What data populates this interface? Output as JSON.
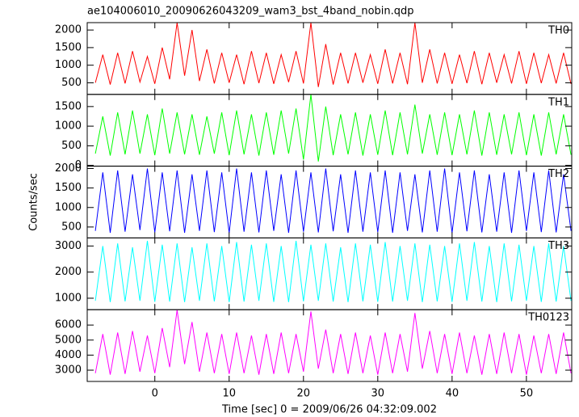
{
  "chart_data": [
    {
      "type": "line",
      "title": "ae104006010_20090626043209_wam3_bst_4band_nobin.qdp",
      "x": [
        -8,
        -7,
        -6,
        -5,
        -4,
        -3,
        -2,
        -1,
        0,
        1,
        2,
        3,
        4,
        5,
        6,
        7,
        8,
        9,
        10,
        11,
        12,
        13,
        14,
        15,
        16,
        17,
        18,
        19,
        20,
        21,
        22,
        23,
        24,
        25,
        26,
        27,
        28,
        29,
        30,
        31,
        32,
        33,
        34,
        35,
        36,
        37,
        38,
        39,
        40,
        41,
        42,
        43,
        44,
        45,
        46,
        47,
        48,
        49,
        50,
        51,
        52,
        53,
        54,
        55,
        56
      ],
      "series": [
        {
          "name": "TH0",
          "color": "#ff0000",
          "values": [
            500,
            1300,
            450,
            1350,
            480,
            1400,
            520,
            1250,
            470,
            1500,
            600,
            2210,
            700,
            2000,
            550,
            1450,
            480,
            1350,
            500,
            1300,
            460,
            1400,
            490,
            1350,
            470,
            1300,
            520,
            1400,
            480,
            2210,
            380,
            1600,
            450,
            1350,
            480,
            1350,
            500,
            1300,
            470,
            1450,
            480,
            1350,
            460,
            2210,
            500,
            1450,
            480,
            1350,
            470,
            1300,
            490,
            1400,
            460,
            1350,
            500,
            1300,
            480,
            1400,
            470,
            1350,
            490,
            1300,
            480,
            1350,
            470
          ]
        }
      ],
      "xlim": [
        -9.1,
        56.1
      ],
      "xticks": [
        0,
        10,
        20,
        30,
        40,
        50
      ],
      "ylim": [
        170,
        2210
      ],
      "yticks": [
        500,
        1000,
        1500,
        2000
      ]
    },
    {
      "type": "line",
      "x": [
        -8,
        -7,
        -6,
        -5,
        -4,
        -3,
        -2,
        -1,
        0,
        1,
        2,
        3,
        4,
        5,
        6,
        7,
        8,
        9,
        10,
        11,
        12,
        13,
        14,
        15,
        16,
        17,
        18,
        19,
        20,
        21,
        22,
        23,
        24,
        25,
        26,
        27,
        28,
        29,
        30,
        31,
        32,
        33,
        34,
        35,
        36,
        37,
        38,
        39,
        40,
        41,
        42,
        43,
        44,
        45,
        46,
        47,
        48,
        49,
        50,
        51,
        52,
        53,
        54,
        55,
        56
      ],
      "series": [
        {
          "name": "TH1",
          "color": "#00ff00",
          "values": [
            300,
            1250,
            250,
            1350,
            280,
            1400,
            300,
            1300,
            260,
            1450,
            300,
            1350,
            280,
            1300,
            270,
            1250,
            300,
            1350,
            260,
            1400,
            280,
            1300,
            250,
            1350,
            270,
            1400,
            300,
            1450,
            150,
            1810,
            100,
            1500,
            260,
            1300,
            280,
            1350,
            250,
            1300,
            270,
            1400,
            260,
            1350,
            280,
            1550,
            300,
            1300,
            270,
            1350,
            260,
            1300,
            280,
            1400,
            250,
            1350,
            270,
            1300,
            280,
            1350,
            260,
            1300,
            250,
            1350,
            280,
            1300,
            270
          ]
        }
      ],
      "xlim": [
        -9.1,
        56.1
      ],
      "xticks": [
        0,
        10,
        20,
        30,
        40,
        50
      ],
      "ylim": [
        -20,
        1810
      ],
      "yticks": [
        0,
        500,
        1000,
        1500
      ]
    },
    {
      "type": "line",
      "ylabel": "Counts/sec",
      "x": [
        -8,
        -7,
        -6,
        -5,
        -4,
        -3,
        -2,
        -1,
        0,
        1,
        2,
        3,
        4,
        5,
        6,
        7,
        8,
        9,
        10,
        11,
        12,
        13,
        14,
        15,
        16,
        17,
        18,
        19,
        20,
        21,
        22,
        23,
        24,
        25,
        26,
        27,
        28,
        29,
        30,
        31,
        32,
        33,
        34,
        35,
        36,
        37,
        38,
        39,
        40,
        41,
        42,
        43,
        44,
        45,
        46,
        47,
        48,
        49,
        50,
        51,
        52,
        53,
        54,
        55,
        56
      ],
      "series": [
        {
          "name": "TH2",
          "color": "#0000ff",
          "values": [
            400,
            1900,
            350,
            1950,
            380,
            1850,
            420,
            2000,
            360,
            1900,
            390,
            1950,
            350,
            1850,
            400,
            1950,
            370,
            1900,
            350,
            2000,
            380,
            1900,
            360,
            1950,
            400,
            1850,
            350,
            1950,
            380,
            1900,
            360,
            2000,
            390,
            1850,
            350,
            1950,
            380,
            1900,
            370,
            1950,
            350,
            1900,
            400,
            1850,
            360,
            1950,
            380,
            2000,
            350,
            1900,
            390,
            1950,
            360,
            1850,
            380,
            1900,
            350,
            1950,
            400,
            1900,
            370,
            1950,
            360,
            1850,
            400
          ]
        }
      ],
      "xlim": [
        -9.1,
        56.1
      ],
      "xticks": [
        0,
        10,
        20,
        30,
        40,
        50
      ],
      "ylim": [
        220,
        2060
      ],
      "yticks": [
        500,
        1000,
        1500,
        2000
      ]
    },
    {
      "type": "line",
      "x": [
        -8,
        -7,
        -6,
        -5,
        -4,
        -3,
        -2,
        -1,
        0,
        1,
        2,
        3,
        4,
        5,
        6,
        7,
        8,
        9,
        10,
        11,
        12,
        13,
        14,
        15,
        16,
        17,
        18,
        19,
        20,
        21,
        22,
        23,
        24,
        25,
        26,
        27,
        28,
        29,
        30,
        31,
        32,
        33,
        34,
        35,
        36,
        37,
        38,
        39,
        40,
        41,
        42,
        43,
        44,
        45,
        46,
        47,
        48,
        49,
        50,
        51,
        52,
        53,
        54,
        55,
        56
      ],
      "series": [
        {
          "name": "TH3",
          "color": "#00ffff",
          "values": [
            900,
            3000,
            850,
            3100,
            880,
            2950,
            900,
            3200,
            860,
            3050,
            870,
            3100,
            850,
            2950,
            900,
            3100,
            880,
            3000,
            850,
            3150,
            870,
            3050,
            900,
            3100,
            860,
            3000,
            850,
            3200,
            880,
            3050,
            900,
            3100,
            870,
            2950,
            850,
            3100,
            880,
            3050,
            860,
            3150,
            870,
            3000,
            900,
            3100,
            850,
            3050,
            880,
            3000,
            860,
            3100,
            900,
            3150,
            870,
            3000,
            850,
            3100,
            880,
            3050,
            900,
            3000,
            860,
            3100,
            870,
            3000,
            900
          ]
        }
      ],
      "xlim": [
        -9.1,
        56.1
      ],
      "xticks": [
        0,
        10,
        20,
        30,
        40,
        50
      ],
      "ylim": [
        560,
        3310
      ],
      "yticks": [
        1000,
        2000,
        3000
      ]
    },
    {
      "type": "line",
      "xlabel": "Time [sec] 0 = 2009/06/26 04:32:09.002",
      "x": [
        -8,
        -7,
        -6,
        -5,
        -4,
        -3,
        -2,
        -1,
        0,
        1,
        2,
        3,
        4,
        5,
        6,
        7,
        8,
        9,
        10,
        11,
        12,
        13,
        14,
        15,
        16,
        17,
        18,
        19,
        20,
        21,
        22,
        23,
        24,
        25,
        26,
        27,
        28,
        29,
        30,
        31,
        32,
        33,
        34,
        35,
        36,
        37,
        38,
        39,
        40,
        41,
        42,
        43,
        44,
        45,
        46,
        47,
        48,
        49,
        50,
        51,
        52,
        53,
        54,
        55,
        56
      ],
      "series": [
        {
          "name": "TH0123",
          "color": "#ff00ff",
          "values": [
            2800,
            5400,
            2700,
            5500,
            2750,
            5600,
            2900,
            5300,
            2800,
            5800,
            3200,
            7000,
            3400,
            6200,
            2900,
            5500,
            2800,
            5400,
            2750,
            5500,
            2800,
            5300,
            2700,
            5400,
            2750,
            5500,
            2800,
            5400,
            2900,
            6900,
            3100,
            5700,
            2800,
            5400,
            2750,
            5500,
            2800,
            5300,
            2700,
            5500,
            2800,
            5400,
            2900,
            6800,
            3100,
            5600,
            2800,
            5400,
            2750,
            5500,
            2800,
            5300,
            2700,
            5400,
            2750,
            5500,
            2800,
            5400,
            2700,
            5300,
            2800,
            5400,
            2750,
            5500,
            2800
          ]
        }
      ],
      "xlim": [
        -9.1,
        56.1
      ],
      "xticks": [
        0,
        10,
        20,
        30,
        40,
        50
      ],
      "ylim": [
        2250,
        7020
      ],
      "yticks": [
        3000,
        4000,
        5000,
        6000
      ]
    }
  ]
}
